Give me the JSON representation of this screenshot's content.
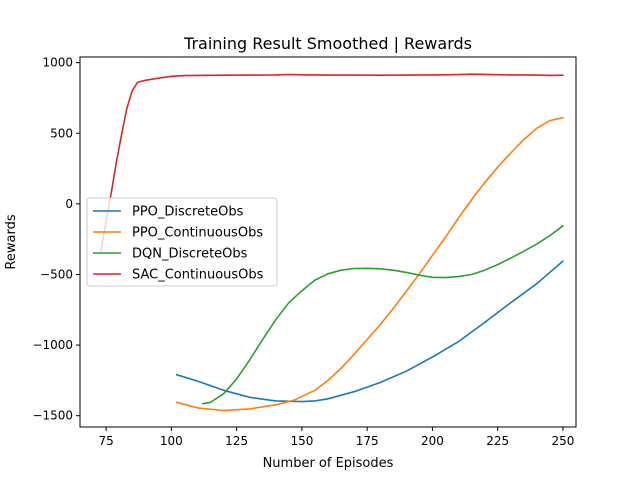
{
  "chart_data": {
    "type": "line",
    "title": "Training Result Smoothed | Rewards",
    "xlabel": "Number of Episodes",
    "ylabel": "Rewards",
    "xlim": [
      65,
      255
    ],
    "ylim": [
      -1580,
      1040
    ],
    "x_ticks": [
      75,
      100,
      125,
      150,
      175,
      200,
      225,
      250
    ],
    "x_tick_labels": [
      "75",
      "100",
      "125",
      "150",
      "175",
      "200",
      "225",
      "250"
    ],
    "y_ticks": [
      1000,
      500,
      0,
      -500,
      -1000,
      -1500
    ],
    "y_tick_labels": [
      "1000",
      "500",
      "0",
      "−500",
      "−1000",
      "−1500"
    ],
    "grid": false,
    "legend_position": "center-left",
    "series": [
      {
        "name": "PPO_DiscreteObs",
        "color": "#1f77b4",
        "points": [
          [
            102,
            -1210
          ],
          [
            110,
            -1255
          ],
          [
            120,
            -1320
          ],
          [
            130,
            -1370
          ],
          [
            140,
            -1395
          ],
          [
            150,
            -1400
          ],
          [
            155,
            -1395
          ],
          [
            160,
            -1380
          ],
          [
            170,
            -1330
          ],
          [
            180,
            -1265
          ],
          [
            190,
            -1185
          ],
          [
            200,
            -1085
          ],
          [
            210,
            -975
          ],
          [
            220,
            -840
          ],
          [
            230,
            -700
          ],
          [
            240,
            -565
          ],
          [
            250,
            -405
          ]
        ]
      },
      {
        "name": "PPO_ContinuousObs",
        "color": "#ff7f0e",
        "points": [
          [
            102,
            -1405
          ],
          [
            110,
            -1445
          ],
          [
            120,
            -1463
          ],
          [
            130,
            -1452
          ],
          [
            140,
            -1423
          ],
          [
            147,
            -1390
          ],
          [
            155,
            -1320
          ],
          [
            160,
            -1250
          ],
          [
            165,
            -1165
          ],
          [
            170,
            -1065
          ],
          [
            175,
            -960
          ],
          [
            180,
            -855
          ],
          [
            185,
            -740
          ],
          [
            190,
            -620
          ],
          [
            195,
            -495
          ],
          [
            200,
            -365
          ],
          [
            205,
            -235
          ],
          [
            210,
            -100
          ],
          [
            215,
            30
          ],
          [
            220,
            150
          ],
          [
            225,
            260
          ],
          [
            230,
            360
          ],
          [
            235,
            455
          ],
          [
            240,
            535
          ],
          [
            245,
            590
          ],
          [
            250,
            610
          ]
        ]
      },
      {
        "name": "DQN_DiscreteObs",
        "color": "#2ca02c",
        "points": [
          [
            112,
            -1415
          ],
          [
            115,
            -1405
          ],
          [
            120,
            -1345
          ],
          [
            125,
            -1240
          ],
          [
            130,
            -1105
          ],
          [
            135,
            -960
          ],
          [
            140,
            -820
          ],
          [
            145,
            -700
          ],
          [
            150,
            -615
          ],
          [
            155,
            -540
          ],
          [
            160,
            -495
          ],
          [
            165,
            -470
          ],
          [
            170,
            -458
          ],
          [
            175,
            -456
          ],
          [
            180,
            -460
          ],
          [
            185,
            -470
          ],
          [
            190,
            -485
          ],
          [
            195,
            -505
          ],
          [
            200,
            -520
          ],
          [
            205,
            -522
          ],
          [
            210,
            -515
          ],
          [
            215,
            -500
          ],
          [
            220,
            -470
          ],
          [
            225,
            -430
          ],
          [
            230,
            -385
          ],
          [
            235,
            -335
          ],
          [
            240,
            -285
          ],
          [
            245,
            -225
          ],
          [
            250,
            -155
          ]
        ]
      },
      {
        "name": "SAC_ContinuousObs",
        "color": "#d62728",
        "points": [
          [
            73,
            -340
          ],
          [
            75,
            -120
          ],
          [
            77,
            80
          ],
          [
            79,
            300
          ],
          [
            81,
            500
          ],
          [
            83,
            680
          ],
          [
            85,
            800
          ],
          [
            87,
            860
          ],
          [
            90,
            875
          ],
          [
            95,
            890
          ],
          [
            100,
            903
          ],
          [
            105,
            908
          ],
          [
            110,
            910
          ],
          [
            120,
            911
          ],
          [
            130,
            912
          ],
          [
            140,
            913
          ],
          [
            145,
            916
          ],
          [
            150,
            914
          ],
          [
            160,
            912
          ],
          [
            170,
            912
          ],
          [
            180,
            911
          ],
          [
            190,
            912
          ],
          [
            200,
            913
          ],
          [
            205,
            914
          ],
          [
            210,
            916
          ],
          [
            215,
            918
          ],
          [
            220,
            917
          ],
          [
            225,
            915
          ],
          [
            230,
            913
          ],
          [
            235,
            913
          ],
          [
            240,
            912
          ],
          [
            245,
            910
          ],
          [
            250,
            911
          ]
        ]
      }
    ]
  }
}
